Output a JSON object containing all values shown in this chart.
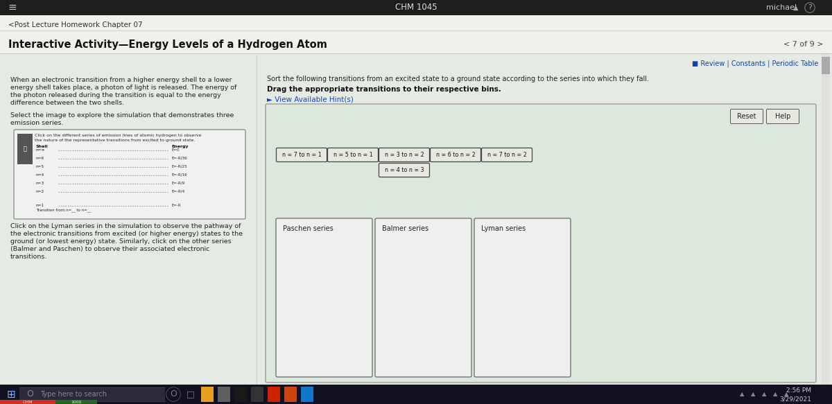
{
  "bg_color": "#c8d8c8",
  "top_bar_color": "#1a1a1a",
  "main_bg": "#e8ece8",
  "title_top": "CHM 1045",
  "user_top": "michael",
  "nav_text": "<Post Lecture Homework Chapter 07",
  "main_title": "Interactive Activity—Energy Levels of a Hydrogen Atom",
  "page_nav": "< 7 of 9 >",
  "review_text": "■ Review | Constants | Periodic Table",
  "left_paragraph_lines": [
    "When an electronic transition from a higher energy shell to a lower",
    "energy shell takes place, a photon of light is released. The energy of",
    "the photon released during the transition is equal to the energy",
    "difference between the two shells.",
    "",
    "Select the image to explore the simulation that demonstrates three",
    "emission series."
  ],
  "right_instruction1": "Sort the following transitions from an excited state to a ground state according to the series into which they fall.",
  "right_instruction2": "Drag the appropriate transitions to their respective bins.",
  "hint_text": "► View Available Hint(s)",
  "reset_btn": "Reset",
  "help_btn": "Help",
  "transition_buttons_row1": [
    "n = 7 to n = 1",
    "n = 5 to n = 1",
    "n = 3 to n = 2",
    "n = 6 to n = 2",
    "n = 7 to n = 2"
  ],
  "transition_buttons_row2": [
    "n = 4 to n = 3"
  ],
  "series_bins": [
    "Paschen series",
    "Balmer series",
    "Lyman series"
  ],
  "taskbar_color": "#111122",
  "time_line1": "2:56 PM",
  "time_line2": "3/29/2021",
  "search_text": "Type here to search",
  "diagram_title_lines": [
    "Click on the different series of emission lines of atomic hydrogen to observe",
    "the nature of the representative transitions from excited to ground state."
  ],
  "diagram_shells": [
    "n=∞",
    "n=6",
    "n=5",
    "n=4",
    "n=3",
    "n=2"
  ],
  "diagram_energies": [
    "E=0",
    "E=-R/36",
    "E=-R/25",
    "E=-R/16",
    "E=-R/9",
    "E=-R/4"
  ],
  "lyman_paragraph_lines": [
    "Click on the Lyman series in the simulation to observe the pathway of",
    "the electronic transitions from excited (or higher energy) states to the",
    "ground (or lowest energy) state. Similarly, click on the other series",
    "(Balmer and Paschen) to observe their associated electronic",
    "transitions."
  ],
  "scrollbar_color": "#999999",
  "panel_bg": "#dce8dc",
  "panel_border": "#888888",
  "btn_bg": "#e8e8e0",
  "btn_border": "#555555",
  "bin_bg": "#eef0ee",
  "bin_border": "#666666"
}
